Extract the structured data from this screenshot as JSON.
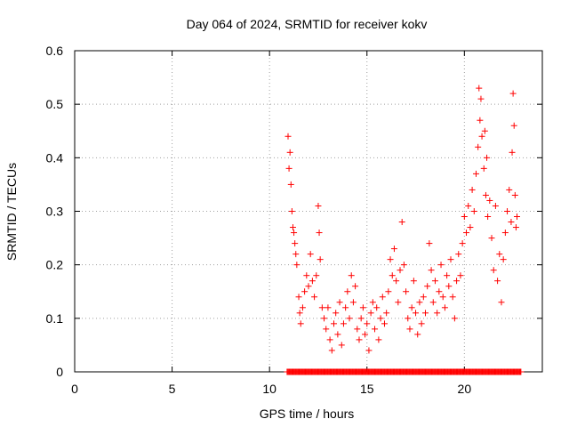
{
  "chart_data": {
    "type": "scatter",
    "title": "Day 064 of 2024, SRMTID for receiver kokv",
    "xlabel": "GPS time / hours",
    "ylabel": "SRMTID / TECUs",
    "xlim": [
      0,
      24
    ],
    "ylim": [
      0,
      0.6
    ],
    "xticks": [
      0,
      5,
      10,
      15,
      20
    ],
    "yticks": [
      0,
      0.1,
      0.2,
      0.3,
      0.4,
      0.5,
      0.6
    ],
    "xtick_labels": [
      "0",
      "5",
      "10",
      "15",
      "20"
    ],
    "ytick_labels": [
      "0",
      "0.1",
      "0.2",
      "0.3",
      "0.4",
      "0.5",
      "0.6"
    ],
    "grid": true,
    "marker": "+",
    "series": [
      {
        "name": "SRMTID",
        "color": "#ff0000",
        "points": [
          [
            10.95,
            0.44
          ],
          [
            11.0,
            0.38
          ],
          [
            11.05,
            0.41
          ],
          [
            11.1,
            0.35
          ],
          [
            11.15,
            0.3
          ],
          [
            11.2,
            0.27
          ],
          [
            11.25,
            0.26
          ],
          [
            11.3,
            0.24
          ],
          [
            11.35,
            0.22
          ],
          [
            11.4,
            0.2
          ],
          [
            11.5,
            0.14
          ],
          [
            11.55,
            0.11
          ],
          [
            11.6,
            0.09
          ],
          [
            11.7,
            0.12
          ],
          [
            11.8,
            0.15
          ],
          [
            11.9,
            0.18
          ],
          [
            12.0,
            0.16
          ],
          [
            12.1,
            0.22
          ],
          [
            12.2,
            0.17
          ],
          [
            12.3,
            0.14
          ],
          [
            12.4,
            0.18
          ],
          [
            12.5,
            0.31
          ],
          [
            12.55,
            0.26
          ],
          [
            12.6,
            0.21
          ],
          [
            12.7,
            0.12
          ],
          [
            12.8,
            0.1
          ],
          [
            12.9,
            0.08
          ],
          [
            13.0,
            0.12
          ],
          [
            13.1,
            0.06
          ],
          [
            13.2,
            0.04
          ],
          [
            13.3,
            0.09
          ],
          [
            13.4,
            0.11
          ],
          [
            13.5,
            0.07
          ],
          [
            13.6,
            0.13
          ],
          [
            13.7,
            0.05
          ],
          [
            13.8,
            0.09
          ],
          [
            13.9,
            0.12
          ],
          [
            14.0,
            0.15
          ],
          [
            14.1,
            0.1
          ],
          [
            14.2,
            0.18
          ],
          [
            14.3,
            0.13
          ],
          [
            14.4,
            0.16
          ],
          [
            14.5,
            0.08
          ],
          [
            14.6,
            0.06
          ],
          [
            14.7,
            0.1
          ],
          [
            14.8,
            0.12
          ],
          [
            14.9,
            0.07
          ],
          [
            15.0,
            0.09
          ],
          [
            15.1,
            0.04
          ],
          [
            15.2,
            0.11
          ],
          [
            15.3,
            0.13
          ],
          [
            15.4,
            0.08
          ],
          [
            15.5,
            0.12
          ],
          [
            15.6,
            0.06
          ],
          [
            15.7,
            0.1
          ],
          [
            15.8,
            0.14
          ],
          [
            15.9,
            0.09
          ],
          [
            16.0,
            0.11
          ],
          [
            16.1,
            0.15
          ],
          [
            16.2,
            0.21
          ],
          [
            16.3,
            0.18
          ],
          [
            16.4,
            0.23
          ],
          [
            16.5,
            0.17
          ],
          [
            16.6,
            0.13
          ],
          [
            16.7,
            0.19
          ],
          [
            16.8,
            0.28
          ],
          [
            16.9,
            0.2
          ],
          [
            17.0,
            0.15
          ],
          [
            17.1,
            0.1
          ],
          [
            17.2,
            0.08
          ],
          [
            17.3,
            0.12
          ],
          [
            17.4,
            0.17
          ],
          [
            17.5,
            0.11
          ],
          [
            17.6,
            0.07
          ],
          [
            17.7,
            0.13
          ],
          [
            17.8,
            0.09
          ],
          [
            17.9,
            0.14
          ],
          [
            18.0,
            0.11
          ],
          [
            18.1,
            0.16
          ],
          [
            18.2,
            0.24
          ],
          [
            18.3,
            0.19
          ],
          [
            18.4,
            0.13
          ],
          [
            18.5,
            0.17
          ],
          [
            18.6,
            0.11
          ],
          [
            18.7,
            0.15
          ],
          [
            18.8,
            0.2
          ],
          [
            18.9,
            0.14
          ],
          [
            19.0,
            0.12
          ],
          [
            19.1,
            0.18
          ],
          [
            19.2,
            0.16
          ],
          [
            19.3,
            0.21
          ],
          [
            19.4,
            0.14
          ],
          [
            19.5,
            0.1
          ],
          [
            19.6,
            0.17
          ],
          [
            19.7,
            0.22
          ],
          [
            19.8,
            0.18
          ],
          [
            19.9,
            0.24
          ],
          [
            20.0,
            0.29
          ],
          [
            20.1,
            0.26
          ],
          [
            20.2,
            0.31
          ],
          [
            20.3,
            0.27
          ],
          [
            20.4,
            0.34
          ],
          [
            20.5,
            0.3
          ],
          [
            20.6,
            0.37
          ],
          [
            20.7,
            0.42
          ],
          [
            20.75,
            0.53
          ],
          [
            20.8,
            0.47
          ],
          [
            20.85,
            0.51
          ],
          [
            20.9,
            0.44
          ],
          [
            21.0,
            0.38
          ],
          [
            21.05,
            0.45
          ],
          [
            21.1,
            0.33
          ],
          [
            21.15,
            0.4
          ],
          [
            21.2,
            0.29
          ],
          [
            21.3,
            0.32
          ],
          [
            21.4,
            0.25
          ],
          [
            21.5,
            0.19
          ],
          [
            21.6,
            0.31
          ],
          [
            21.7,
            0.17
          ],
          [
            21.8,
            0.22
          ],
          [
            21.9,
            0.13
          ],
          [
            22.0,
            0.21
          ],
          [
            22.1,
            0.26
          ],
          [
            22.2,
            0.3
          ],
          [
            22.3,
            0.34
          ],
          [
            22.4,
            0.28
          ],
          [
            22.45,
            0.41
          ],
          [
            22.5,
            0.52
          ],
          [
            22.55,
            0.46
          ],
          [
            22.6,
            0.33
          ],
          [
            22.65,
            0.27
          ],
          [
            22.7,
            0.29
          ]
        ],
        "baseline_x_range": [
          10.9,
          22.9
        ]
      }
    ]
  }
}
